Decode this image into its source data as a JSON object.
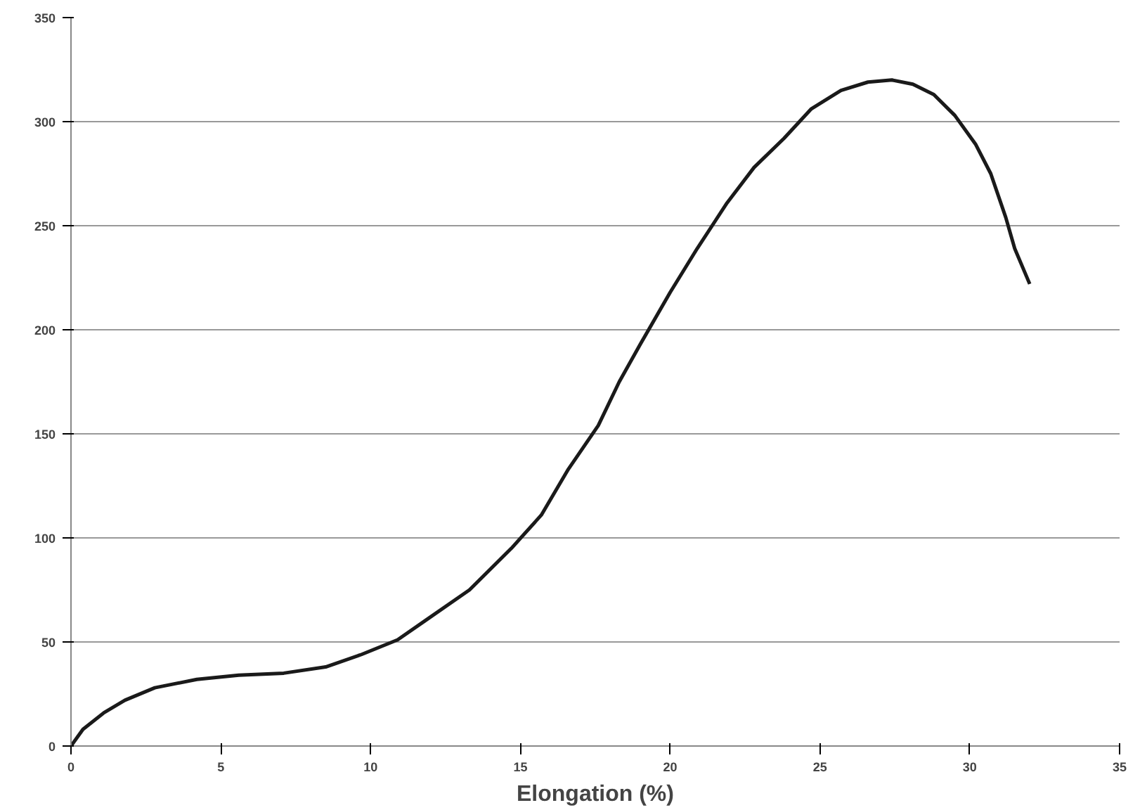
{
  "chart_data": {
    "type": "line",
    "xlabel": "Elongation (%)",
    "x": [
      0,
      0.4,
      1.1,
      1.8,
      2.8,
      4.2,
      5.6,
      7.1,
      8.5,
      9.7,
      10.9,
      11.8,
      13.3,
      14.7,
      15.7,
      16.6,
      17.6,
      18.3,
      19.0,
      20.0,
      20.9,
      21.9,
      22.8,
      23.8,
      24.7,
      25.7,
      26.6,
      27.4,
      28.1,
      28.8,
      29.5,
      30.2,
      30.7,
      31.2,
      31.5,
      32.0
    ],
    "series": [
      {
        "color": "#1a1a1a",
        "values": [
          0,
          8,
          16,
          22,
          28,
          32,
          34,
          35,
          38,
          44,
          51,
          60,
          75,
          95,
          111,
          133,
          154,
          175,
          193,
          218,
          239,
          261,
          278,
          292,
          306,
          315,
          319,
          320,
          318,
          313,
          303,
          289,
          275,
          254,
          239,
          222
        ]
      }
    ],
    "xlim": [
      0,
      35
    ],
    "xticks": [
      0,
      5,
      10,
      15,
      20,
      25,
      30,
      35
    ],
    "ylim": [
      0,
      350
    ],
    "yticks": [
      0,
      50,
      100,
      150,
      200,
      250,
      300,
      350
    ],
    "grid": "y",
    "marker": "none",
    "line_style": "solid"
  }
}
